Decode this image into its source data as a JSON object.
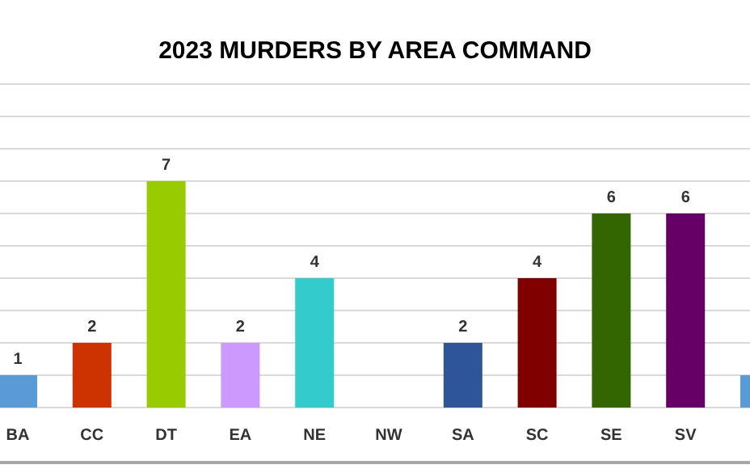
{
  "chart_data": {
    "type": "bar",
    "title": "2023 MURDERS BY AREA COMMAND",
    "categories": [
      "BA",
      "CC",
      "DT",
      "EA",
      "NE",
      "NW",
      "SA",
      "SC",
      "SE",
      "SV",
      null
    ],
    "values": [
      1,
      2,
      7,
      2,
      4,
      0,
      2,
      4,
      6,
      6,
      1
    ],
    "colors": [
      "#5b9bd5",
      "#cc3300",
      "#99cc00",
      "#cc99ff",
      "#33cccc",
      "#888888",
      "#2e5597",
      "#800000",
      "#336600",
      "#660066",
      "#5b9bd5"
    ],
    "value_labels": [
      "1",
      "2",
      "7",
      "2",
      "4",
      null,
      "2",
      "4",
      "6",
      "6",
      null
    ],
    "ylim": [
      0,
      10
    ],
    "yticks": [
      {
        "value": 0,
        "label": null
      },
      {
        "value": 1,
        "label": null
      },
      {
        "value": 2,
        "label": null
      },
      {
        "value": 3,
        "label": null
      },
      {
        "value": 4,
        "label": null
      },
      {
        "value": 5,
        "label": null
      },
      {
        "value": 6,
        "label": null
      },
      {
        "value": 7,
        "label": null
      },
      {
        "value": 8,
        "label": null
      },
      {
        "value": 9,
        "label": null
      },
      {
        "value": 10,
        "label": null
      }
    ],
    "grid": "y",
    "tick_labels": "x"
  }
}
